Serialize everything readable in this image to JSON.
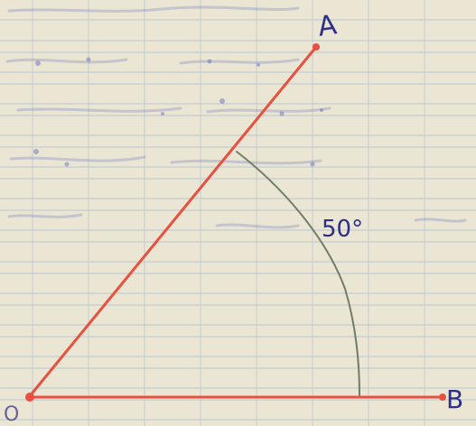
{
  "diagram": {
    "points": {
      "origin": {
        "label": "O"
      },
      "a": {
        "label": "A"
      },
      "b": {
        "label": "B"
      }
    },
    "angle": {
      "value_label": "50°"
    }
  },
  "colors": {
    "paper": "#ebe6d4",
    "grid_line": "#b9c7cf",
    "ray": "#e8503f",
    "arc": "#6f7d6a",
    "label_ink": "#2d2f86",
    "faded_ink": "#7a84c2"
  }
}
